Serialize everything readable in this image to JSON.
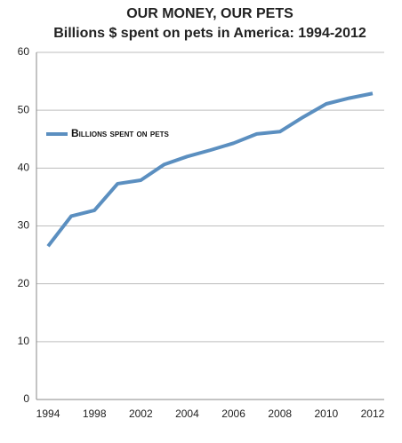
{
  "chart_data": {
    "type": "line",
    "title": "OUR MONEY, OUR PETS",
    "subtitle": "Billions $ spent on pets in America: 1994-2012",
    "categories": [
      "1994",
      null,
      "1998",
      null,
      "2002",
      null,
      "2004",
      null,
      "2006",
      null,
      "2008",
      null,
      "2010",
      null,
      "2012"
    ],
    "series": [
      {
        "name": "Billions spent on pets",
        "color": "#5b8fc0",
        "values": [
          26.5,
          31.7,
          32.7,
          37.3,
          37.9,
          40.6,
          42.0,
          43.1,
          44.3,
          45.9,
          46.3,
          48.8,
          51.1,
          52.1,
          52.9
        ]
      }
    ],
    "ylim": [
      0,
      60
    ],
    "yticks": [
      0,
      10,
      20,
      30,
      40,
      50,
      60
    ],
    "grid": true,
    "legend": "upper left"
  }
}
